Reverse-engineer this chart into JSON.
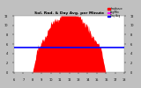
{
  "title": "Sol. Rad. & Day Avg. per Minute",
  "legend_entries": [
    "Irradiance",
    "Avg/Min",
    "Day Avg"
  ],
  "legend_colors": [
    "#ff0000",
    "#ff00ff",
    "#0000ff"
  ],
  "bg_color": "#c0c0c0",
  "plot_bg_color": "#ffffff",
  "bar_color": "#ff0000",
  "avg_line_color": "#0000ff",
  "avg_line_y": 520,
  "grid_color": "#ffffff",
  "tick_color": "#000000",
  "title_color": "#000000",
  "n_points": 288,
  "ylim": [
    0,
    1200
  ],
  "xlim": [
    0,
    287
  ],
  "y_ticks": [
    0,
    200,
    400,
    600,
    800,
    1000,
    1200
  ],
  "y_tick_labels": [
    "0",
    "2",
    "4",
    "6",
    "8",
    "10",
    "12"
  ],
  "x_tick_positions": [
    0,
    24,
    48,
    72,
    96,
    120,
    144,
    168,
    192,
    216,
    240,
    264,
    287
  ],
  "x_tick_labels": [
    "6",
    "7",
    "8",
    "9",
    "10",
    "11",
    "12",
    "13",
    "14",
    "15",
    "16",
    "17",
    "18"
  ]
}
